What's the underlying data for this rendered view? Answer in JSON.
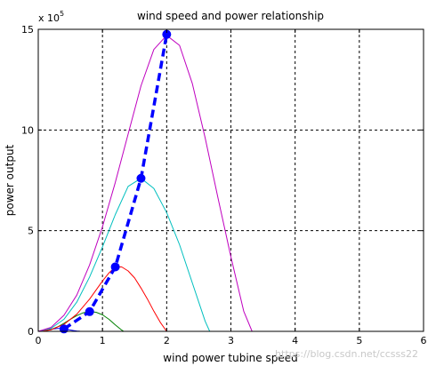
{
  "chart_data": {
    "type": "line",
    "title": "wind speed and power relationship",
    "xlabel": "wind power tubine speed",
    "ylabel": "power output",
    "y_exponent": "x 10^5",
    "xlim": [
      0,
      6
    ],
    "ylim": [
      0,
      1500000
    ],
    "xticks": [
      "0",
      "1",
      "2",
      "3",
      "4",
      "5",
      "6"
    ],
    "yticks": [
      "0",
      "5",
      "10",
      "15"
    ],
    "grid": true,
    "series": [
      {
        "color": "#0000ff",
        "style": "thin",
        "x": [
          0,
          0.05,
          0.1,
          0.15,
          0.2,
          0.25,
          0.3,
          0.35,
          0.4,
          0.45,
          0.5,
          0.55,
          0.6,
          0.65,
          0.7,
          0.75,
          0.8
        ],
        "y": [
          0,
          1000,
          3500,
          7000,
          10500,
          13000,
          14300,
          14000,
          12000,
          9500,
          6500,
          3800,
          1800,
          600,
          150,
          20,
          0
        ]
      },
      {
        "color": "#008000",
        "style": "thin",
        "x": [
          0,
          0.1,
          0.2,
          0.3,
          0.4,
          0.5,
          0.6,
          0.7,
          0.8,
          0.9,
          1.0,
          1.1,
          1.2,
          1.3,
          1.33
        ],
        "y": [
          0,
          2000,
          9000,
          22000,
          40000,
          60000,
          78000,
          92000,
          98000,
          95000,
          82000,
          60000,
          32000,
          6000,
          0
        ]
      },
      {
        "color": "#ff0000",
        "style": "thin",
        "x": [
          0,
          0.2,
          0.4,
          0.6,
          0.8,
          1.0,
          1.1,
          1.2,
          1.3,
          1.4,
          1.5,
          1.6,
          1.7,
          1.8,
          1.9,
          2.0
        ],
        "y": [
          0,
          8000,
          35000,
          85000,
          160000,
          250000,
          290000,
          320000,
          320000,
          300000,
          265000,
          215000,
          160000,
          100000,
          45000,
          0
        ]
      },
      {
        "color": "#00bfbf",
        "style": "thin",
        "x": [
          0,
          0.2,
          0.4,
          0.6,
          0.8,
          1.0,
          1.2,
          1.4,
          1.6,
          1.8,
          2.0,
          2.2,
          2.4,
          2.6,
          2.67
        ],
        "y": [
          0,
          15000,
          60000,
          145000,
          270000,
          420000,
          580000,
          720000,
          760000,
          710000,
          590000,
          430000,
          240000,
          50000,
          0
        ]
      },
      {
        "color": "#bf00bf",
        "style": "thin",
        "x": [
          0,
          0.2,
          0.4,
          0.6,
          0.8,
          1.0,
          1.2,
          1.4,
          1.6,
          1.8,
          2.0,
          2.2,
          2.4,
          2.6,
          2.8,
          3.0,
          3.2,
          3.33
        ],
        "y": [
          0,
          20000,
          80000,
          180000,
          330000,
          520000,
          740000,
          980000,
          1220000,
          1400000,
          1470000,
          1420000,
          1230000,
          960000,
          660000,
          370000,
          100000,
          0
        ]
      },
      {
        "color": "#0000ff",
        "style": "thick-dashed-markers",
        "x": [
          0.4,
          0.8,
          1.2,
          1.6,
          2.0
        ],
        "y": [
          12000,
          98000,
          320000,
          760000,
          1475000
        ]
      }
    ]
  },
  "watermark": "https://blog.csdn.net/ccsss22"
}
